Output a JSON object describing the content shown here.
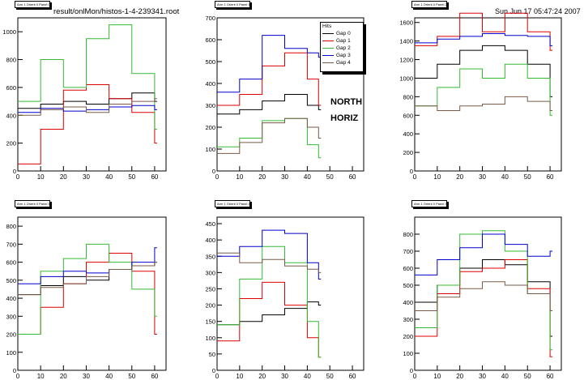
{
  "header": {
    "filename": "result/onlMon/histos-1-4-239341.root",
    "datetime": "Sun Jun 17 05:47:24 2007"
  },
  "legend": {
    "title": "Hits",
    "entries": [
      "Gap 0",
      "Gap 1",
      "Gap 2",
      "Gap 3",
      "Gap 4"
    ]
  },
  "annotation": {
    "line1": "NORTH",
    "line2": "HORIZ"
  },
  "colors": {
    "Gap 0": "#000000",
    "Gap 1": "#dd0000",
    "Gap 2": "#33bb33",
    "Gap 3": "#0000cc",
    "Gap 4": "#7a5a48"
  },
  "chart_data": [
    {
      "type": "line",
      "title": "Arm 1 Orient 0 Panel 0",
      "xlim": [
        0,
        65
      ],
      "ylim": [
        0,
        1100
      ],
      "xticks": [
        0,
        10,
        20,
        30,
        40,
        50,
        60
      ],
      "yticks": [
        0,
        200,
        400,
        600,
        800,
        1000
      ],
      "series": [
        {
          "name": "Gap 0",
          "x": [
            0,
            10,
            20,
            30,
            40,
            50,
            60
          ],
          "y": [
            450,
            480,
            500,
            480,
            520,
            560,
            500
          ]
        },
        {
          "name": "Gap 1",
          "x": [
            0,
            10,
            20,
            30,
            40,
            50,
            60
          ],
          "y": [
            50,
            300,
            580,
            620,
            520,
            420,
            200
          ]
        },
        {
          "name": "Gap 2",
          "x": [
            0,
            10,
            20,
            30,
            40,
            50,
            60
          ],
          "y": [
            500,
            800,
            600,
            950,
            1050,
            700,
            300
          ]
        },
        {
          "name": "Gap 3",
          "x": [
            0,
            10,
            20,
            30,
            40,
            50,
            60
          ],
          "y": [
            420,
            450,
            430,
            440,
            460,
            470,
            440
          ]
        },
        {
          "name": "Gap 4",
          "x": [
            0,
            10,
            20,
            30,
            40,
            50,
            60
          ],
          "y": [
            400,
            440,
            460,
            420,
            480,
            500,
            520
          ]
        }
      ]
    },
    {
      "type": "line",
      "title": "Arm 1 Orient 0 Panel 1",
      "xlim": [
        0,
        65
      ],
      "ylim": [
        0,
        700
      ],
      "xticks": [
        0,
        10,
        20,
        30,
        40,
        50,
        60
      ],
      "yticks": [
        0,
        100,
        200,
        300,
        400,
        500,
        600,
        700
      ],
      "series": [
        {
          "name": "Gap 0",
          "x": [
            0,
            10,
            20,
            30,
            40,
            45
          ],
          "y": [
            260,
            280,
            320,
            350,
            300,
            280
          ]
        },
        {
          "name": "Gap 1",
          "x": [
            0,
            10,
            20,
            30,
            40,
            45
          ],
          "y": [
            300,
            350,
            480,
            540,
            420,
            300
          ]
        },
        {
          "name": "Gap 2",
          "x": [
            0,
            10,
            20,
            30,
            40,
            45
          ],
          "y": [
            110,
            150,
            230,
            240,
            120,
            60
          ]
        },
        {
          "name": "Gap 3",
          "x": [
            0,
            10,
            20,
            30,
            40,
            45
          ],
          "y": [
            360,
            420,
            620,
            560,
            540,
            520
          ]
        },
        {
          "name": "Gap 4",
          "x": [
            0,
            10,
            20,
            30,
            40,
            45
          ],
          "y": [
            80,
            130,
            220,
            240,
            200,
            150
          ]
        }
      ]
    },
    {
      "type": "line",
      "title": "Arm 1 Orient 0 Panel 2",
      "xlim": [
        0,
        65
      ],
      "ylim": [
        0,
        1650
      ],
      "xticks": [
        0,
        10,
        20,
        30,
        40,
        50,
        60
      ],
      "yticks": [
        0,
        200,
        400,
        600,
        800,
        1000,
        1200,
        1400,
        1600
      ],
      "series": [
        {
          "name": "Gap 0",
          "x": [
            0,
            10,
            20,
            30,
            40,
            50,
            60
          ],
          "y": [
            1000,
            1150,
            1300,
            1350,
            1300,
            1150,
            800
          ]
        },
        {
          "name": "Gap 1",
          "x": [
            0,
            10,
            20,
            30,
            40,
            50,
            60
          ],
          "y": [
            1350,
            1450,
            1700,
            1500,
            1700,
            1500,
            1300
          ]
        },
        {
          "name": "Gap 2",
          "x": [
            0,
            10,
            20,
            30,
            40,
            50,
            60
          ],
          "y": [
            700,
            900,
            1100,
            1000,
            1150,
            1000,
            600
          ]
        },
        {
          "name": "Gap 3",
          "x": [
            0,
            10,
            20,
            30,
            40,
            50,
            60
          ],
          "y": [
            1380,
            1420,
            1450,
            1480,
            1460,
            1450,
            1350
          ]
        },
        {
          "name": "Gap 4",
          "x": [
            0,
            10,
            20,
            30,
            40,
            50,
            60
          ],
          "y": [
            700,
            650,
            700,
            720,
            800,
            750,
            650
          ]
        }
      ]
    },
    {
      "type": "line",
      "title": "Arm 1 Orient 0 Panel 5",
      "xlim": [
        0,
        65
      ],
      "ylim": [
        0,
        850
      ],
      "xticks": [
        0,
        10,
        20,
        30,
        40,
        50,
        60
      ],
      "yticks": [
        0,
        100,
        200,
        300,
        400,
        500,
        600,
        700,
        800
      ],
      "series": [
        {
          "name": "Gap 0",
          "x": [
            0,
            10,
            20,
            30,
            40,
            50,
            60
          ],
          "y": [
            420,
            470,
            520,
            500,
            560,
            580,
            600
          ]
        },
        {
          "name": "Gap 1",
          "x": [
            0,
            10,
            20,
            30,
            40,
            50,
            60
          ],
          "y": [
            200,
            350,
            480,
            600,
            650,
            550,
            200
          ]
        },
        {
          "name": "Gap 2",
          "x": [
            0,
            10,
            20,
            30,
            40,
            50,
            60
          ],
          "y": [
            200,
            550,
            620,
            700,
            600,
            450,
            300
          ]
        },
        {
          "name": "Gap 3",
          "x": [
            0,
            10,
            20,
            30,
            40,
            50,
            60
          ],
          "y": [
            480,
            520,
            550,
            540,
            560,
            600,
            680
          ]
        },
        {
          "name": "Gap 4",
          "x": [
            0,
            10,
            20,
            30,
            40,
            50,
            60
          ],
          "y": [
            420,
            460,
            480,
            520,
            560,
            580,
            600
          ]
        }
      ]
    },
    {
      "type": "line",
      "title": "Arm 1 Orient 0 Panel 4",
      "xlim": [
        0,
        65
      ],
      "ylim": [
        0,
        470
      ],
      "xticks": [
        0,
        10,
        20,
        30,
        40,
        50,
        60
      ],
      "yticks": [
        0,
        50,
        100,
        150,
        200,
        250,
        300,
        350,
        400,
        450
      ],
      "series": [
        {
          "name": "Gap 0",
          "x": [
            0,
            10,
            20,
            30,
            40,
            45
          ],
          "y": [
            140,
            150,
            170,
            190,
            210,
            200
          ]
        },
        {
          "name": "Gap 1",
          "x": [
            0,
            10,
            20,
            30,
            40,
            45
          ],
          "y": [
            90,
            220,
            270,
            200,
            100,
            40
          ]
        },
        {
          "name": "Gap 2",
          "x": [
            0,
            10,
            20,
            30,
            40,
            45
          ],
          "y": [
            140,
            280,
            380,
            330,
            150,
            40
          ]
        },
        {
          "name": "Gap 3",
          "x": [
            0,
            10,
            20,
            30,
            40,
            45
          ],
          "y": [
            350,
            380,
            430,
            420,
            330,
            280
          ]
        },
        {
          "name": "Gap 4",
          "x": [
            0,
            10,
            20,
            30,
            40,
            45
          ],
          "y": [
            360,
            330,
            340,
            320,
            310,
            300
          ]
        }
      ]
    },
    {
      "type": "line",
      "title": "Arm 1 Orient 0 Panel 3",
      "xlim": [
        0,
        65
      ],
      "ylim": [
        0,
        900
      ],
      "xticks": [
        0,
        10,
        20,
        30,
        40,
        50,
        60
      ],
      "yticks": [
        0,
        100,
        200,
        300,
        400,
        500,
        600,
        700,
        800
      ],
      "series": [
        {
          "name": "Gap 0",
          "x": [
            0,
            10,
            20,
            30,
            40,
            50,
            60
          ],
          "y": [
            400,
            500,
            600,
            650,
            620,
            520,
            200
          ]
        },
        {
          "name": "Gap 1",
          "x": [
            0,
            10,
            20,
            30,
            40,
            50,
            60
          ],
          "y": [
            200,
            450,
            580,
            600,
            650,
            480,
            80
          ]
        },
        {
          "name": "Gap 2",
          "x": [
            0,
            10,
            20,
            30,
            40,
            50,
            60
          ],
          "y": [
            250,
            500,
            800,
            820,
            700,
            450,
            120
          ]
        },
        {
          "name": "Gap 3",
          "x": [
            0,
            10,
            20,
            30,
            40,
            50,
            60
          ],
          "y": [
            560,
            650,
            720,
            800,
            740,
            670,
            700
          ]
        },
        {
          "name": "Gap 4",
          "x": [
            0,
            10,
            20,
            30,
            40,
            50,
            60
          ],
          "y": [
            350,
            430,
            480,
            520,
            500,
            450,
            350
          ]
        }
      ]
    }
  ]
}
